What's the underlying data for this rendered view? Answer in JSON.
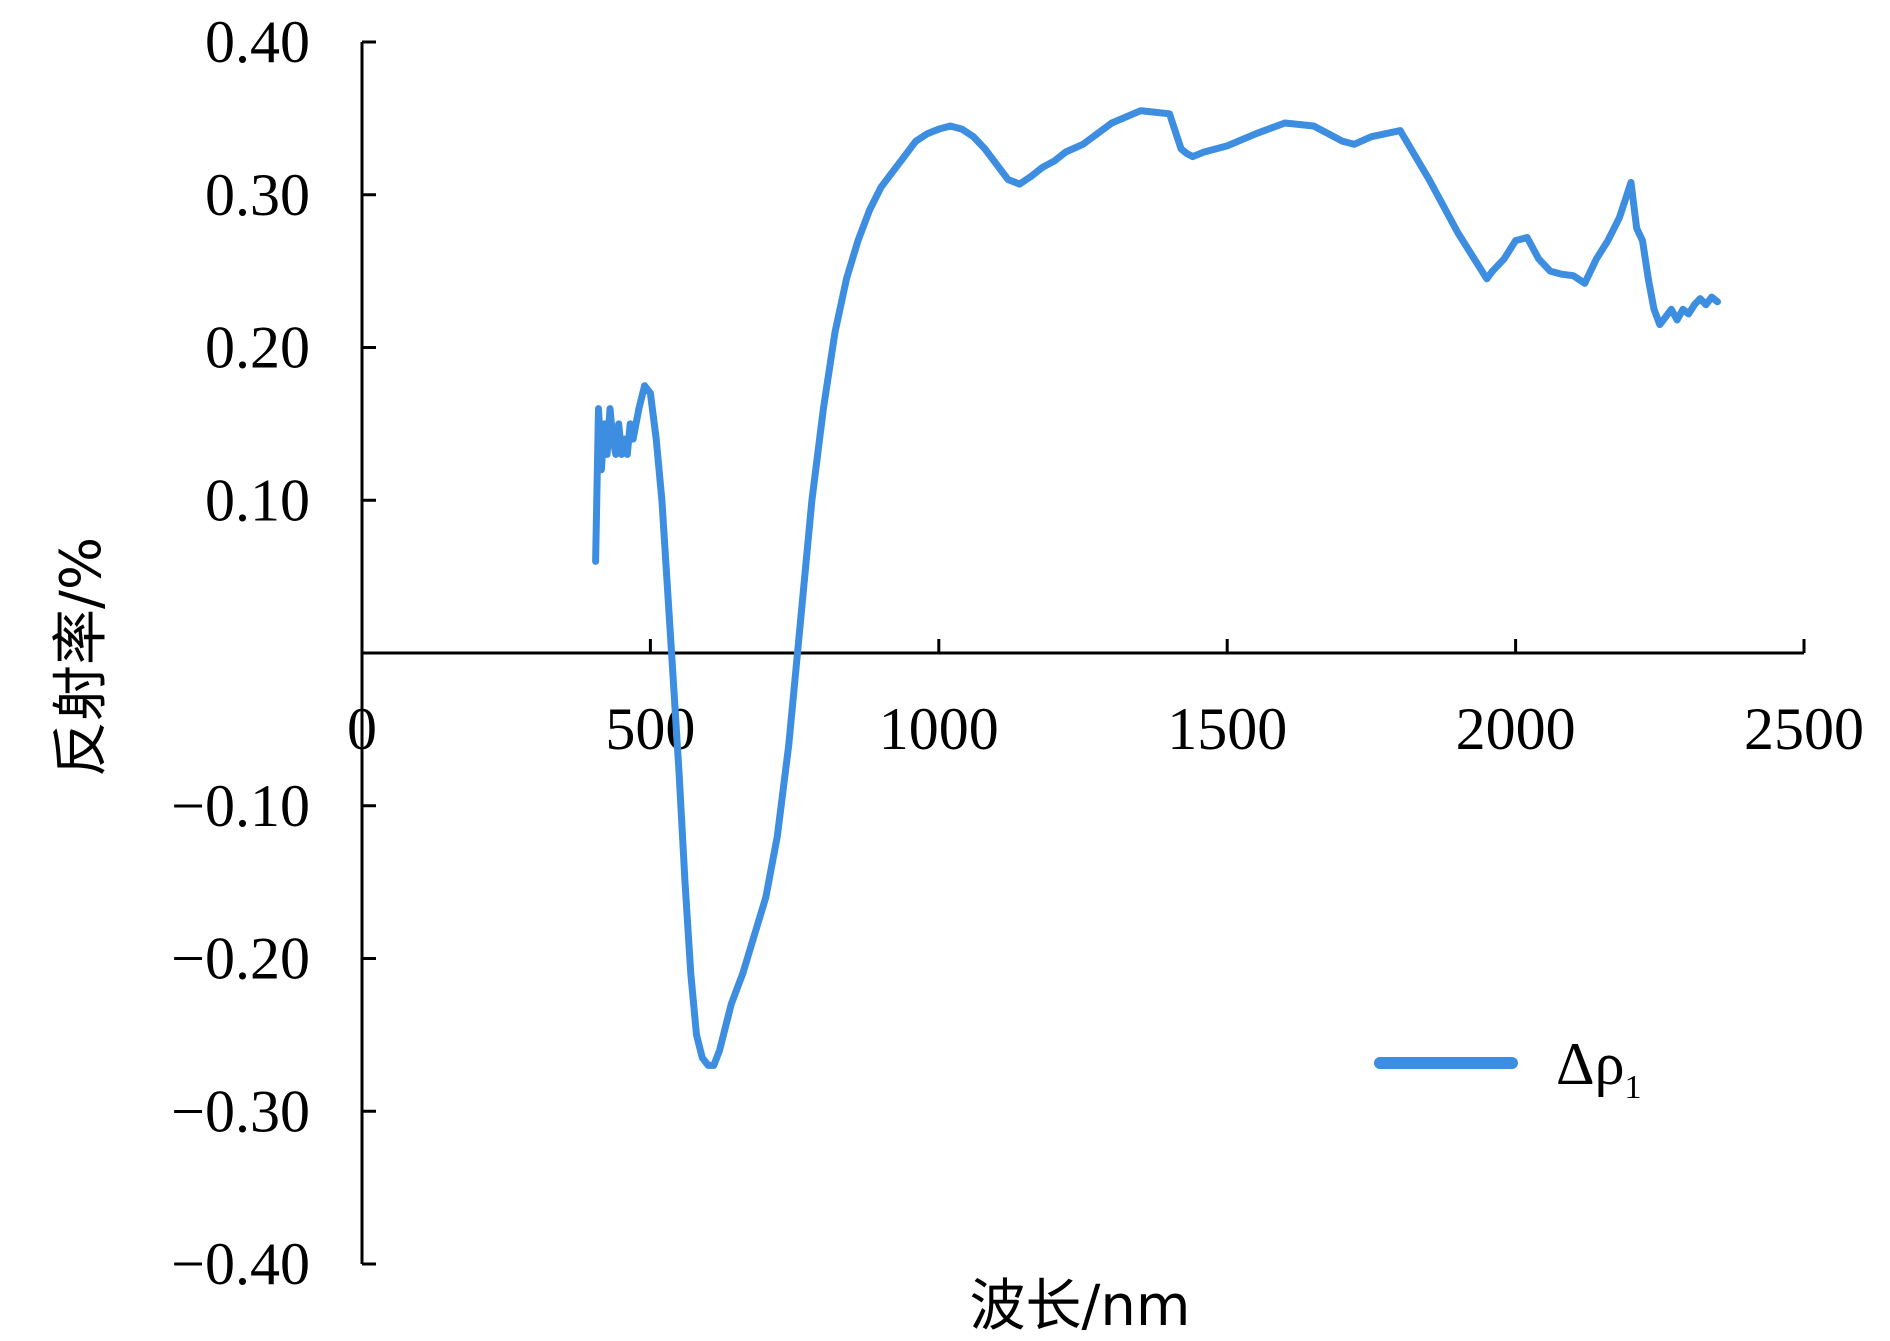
{
  "chart_data": {
    "type": "line",
    "xlabel": "波长/nm",
    "ylabel": "反射率/%",
    "xlim": [
      0,
      2500
    ],
    "ylim": [
      -0.4,
      0.4
    ],
    "x_ticks": [
      "0",
      "500",
      "1000",
      "1500",
      "2000",
      "2500"
    ],
    "x_tick_values": [
      0,
      500,
      1000,
      1500,
      2000,
      2500
    ],
    "y_ticks": [
      "0.40",
      "0.30",
      "0.20",
      "0.10",
      "−0.10",
      "−0.20",
      "−0.30",
      "−0.40"
    ],
    "y_tick_values": [
      0.4,
      0.3,
      0.2,
      0.1,
      -0.1,
      -0.2,
      -0.3,
      -0.4
    ],
    "grid": false,
    "legend_position": "bottom-right",
    "legend": {
      "symbol": "Δρ",
      "subscript": "1"
    },
    "series": [
      {
        "name": "Δρ1",
        "color": "#3d8ee0",
        "x": [
          405,
          410,
          415,
          420,
          425,
          430,
          435,
          440,
          445,
          450,
          455,
          460,
          465,
          470,
          480,
          490,
          500,
          510,
          520,
          530,
          540,
          550,
          560,
          570,
          580,
          590,
          600,
          610,
          620,
          630,
          640,
          650,
          660,
          680,
          700,
          720,
          740,
          760,
          780,
          800,
          820,
          840,
          860,
          880,
          900,
          920,
          940,
          960,
          980,
          1000,
          1020,
          1040,
          1060,
          1080,
          1100,
          1120,
          1140,
          1160,
          1180,
          1200,
          1220,
          1250,
          1300,
          1350,
          1400,
          1420,
          1430,
          1440,
          1460,
          1500,
          1550,
          1600,
          1650,
          1700,
          1720,
          1750,
          1800,
          1850,
          1900,
          1950,
          1960,
          1980,
          2000,
          2020,
          2040,
          2060,
          2080,
          2100,
          2120,
          2140,
          2160,
          2180,
          2200,
          2210,
          2220,
          2230,
          2240,
          2250,
          2260,
          2270,
          2280,
          2290,
          2300,
          2310,
          2320,
          2330,
          2340,
          2350
        ],
        "y": [
          0.06,
          0.16,
          0.12,
          0.15,
          0.13,
          0.16,
          0.14,
          0.13,
          0.15,
          0.13,
          0.14,
          0.13,
          0.15,
          0.14,
          0.16,
          0.175,
          0.17,
          0.14,
          0.1,
          0.04,
          -0.02,
          -0.08,
          -0.15,
          -0.21,
          -0.25,
          -0.265,
          -0.27,
          -0.27,
          -0.26,
          -0.245,
          -0.23,
          -0.22,
          -0.21,
          -0.185,
          -0.16,
          -0.12,
          -0.06,
          0.02,
          0.1,
          0.16,
          0.21,
          0.245,
          0.27,
          0.29,
          0.305,
          0.315,
          0.325,
          0.335,
          0.34,
          0.343,
          0.345,
          0.343,
          0.338,
          0.33,
          0.32,
          0.31,
          0.307,
          0.312,
          0.318,
          0.322,
          0.328,
          0.333,
          0.347,
          0.355,
          0.353,
          0.33,
          0.327,
          0.325,
          0.328,
          0.332,
          0.34,
          0.347,
          0.345,
          0.335,
          0.333,
          0.338,
          0.342,
          0.31,
          0.275,
          0.245,
          0.25,
          0.258,
          0.27,
          0.272,
          0.258,
          0.25,
          0.248,
          0.247,
          0.242,
          0.258,
          0.27,
          0.285,
          0.308,
          0.278,
          0.27,
          0.245,
          0.225,
          0.215,
          0.22,
          0.225,
          0.218,
          0.225,
          0.222,
          0.228,
          0.232,
          0.228,
          0.233,
          0.23
        ]
      }
    ]
  }
}
